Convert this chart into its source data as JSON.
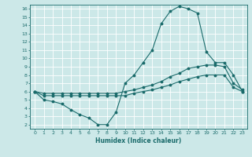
{
  "xlabel": "Humidex (Indice chaleur)",
  "bg_color": "#cce8e8",
  "grid_color": "#ffffff",
  "line_color": "#1a6b6b",
  "xlim": [
    -0.5,
    23.5
  ],
  "ylim": [
    1.5,
    16.5
  ],
  "xticks": [
    0,
    1,
    2,
    3,
    4,
    5,
    6,
    7,
    8,
    9,
    10,
    11,
    12,
    13,
    14,
    15,
    16,
    17,
    18,
    19,
    20,
    21,
    22,
    23
  ],
  "yticks": [
    2,
    3,
    4,
    5,
    6,
    7,
    8,
    9,
    10,
    11,
    12,
    13,
    14,
    15,
    16
  ],
  "line1_x": [
    0,
    1,
    2,
    3,
    4,
    5,
    6,
    7,
    8,
    9,
    10,
    11,
    12,
    13,
    14,
    15,
    16,
    17,
    18,
    19,
    20,
    21,
    22,
    23
  ],
  "line1_y": [
    6.0,
    5.0,
    4.8,
    4.5,
    3.8,
    3.2,
    2.8,
    2.0,
    2.0,
    3.5,
    7.0,
    8.0,
    9.5,
    11.0,
    14.2,
    15.7,
    16.3,
    16.0,
    15.5,
    10.8,
    9.5,
    9.5,
    8.0,
    6.0
  ],
  "line2_x": [
    0,
    1,
    2,
    3,
    4,
    5,
    6,
    7,
    8,
    9,
    10,
    11,
    12,
    13,
    14,
    15,
    16,
    17,
    18,
    19,
    20,
    21,
    22,
    23
  ],
  "line2_y": [
    6.0,
    5.5,
    5.5,
    5.5,
    5.5,
    5.5,
    5.5,
    5.5,
    5.5,
    5.5,
    5.5,
    5.8,
    6.0,
    6.2,
    6.5,
    6.8,
    7.2,
    7.5,
    7.8,
    8.0,
    8.0,
    8.0,
    6.5,
    6.0
  ],
  "line3_x": [
    0,
    1,
    2,
    3,
    4,
    5,
    6,
    7,
    8,
    9,
    10,
    11,
    12,
    13,
    14,
    15,
    16,
    17,
    18,
    19,
    20,
    21,
    22,
    23
  ],
  "line3_y": [
    6.0,
    5.8,
    5.8,
    5.8,
    5.8,
    5.8,
    5.8,
    5.8,
    5.8,
    5.8,
    6.0,
    6.2,
    6.5,
    6.8,
    7.2,
    7.8,
    8.2,
    8.8,
    9.0,
    9.2,
    9.2,
    9.0,
    7.0,
    6.2
  ]
}
